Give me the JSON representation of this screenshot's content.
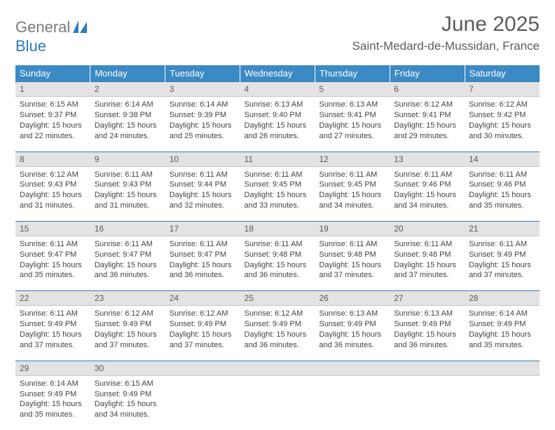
{
  "brand": {
    "word1": "General",
    "word2": "Blue"
  },
  "title": "June 2025",
  "location": "Saint-Medard-de-Mussidan, France",
  "colors": {
    "header_bg": "#3b8ac4",
    "header_text": "#ffffff",
    "daynum_bg": "#e3e3e3",
    "daynum_border_top": "#2f7ac0",
    "body_text": "#444444",
    "brand_gray": "#7a7a7a",
    "brand_blue": "#2f7ac0"
  },
  "typography": {
    "title_fontsize": 30,
    "location_fontsize": 17,
    "weekday_fontsize": 13,
    "daynum_fontsize": 12,
    "body_fontsize": 11
  },
  "weekdays": [
    "Sunday",
    "Monday",
    "Tuesday",
    "Wednesday",
    "Thursday",
    "Friday",
    "Saturday"
  ],
  "days": [
    {
      "n": "1",
      "sunrise": "Sunrise: 6:15 AM",
      "sunset": "Sunset: 9:37 PM",
      "day1": "Daylight: 15 hours",
      "day2": "and 22 minutes."
    },
    {
      "n": "2",
      "sunrise": "Sunrise: 6:14 AM",
      "sunset": "Sunset: 9:38 PM",
      "day1": "Daylight: 15 hours",
      "day2": "and 24 minutes."
    },
    {
      "n": "3",
      "sunrise": "Sunrise: 6:14 AM",
      "sunset": "Sunset: 9:39 PM",
      "day1": "Daylight: 15 hours",
      "day2": "and 25 minutes."
    },
    {
      "n": "4",
      "sunrise": "Sunrise: 6:13 AM",
      "sunset": "Sunset: 9:40 PM",
      "day1": "Daylight: 15 hours",
      "day2": "and 26 minutes."
    },
    {
      "n": "5",
      "sunrise": "Sunrise: 6:13 AM",
      "sunset": "Sunset: 9:41 PM",
      "day1": "Daylight: 15 hours",
      "day2": "and 27 minutes."
    },
    {
      "n": "6",
      "sunrise": "Sunrise: 6:12 AM",
      "sunset": "Sunset: 9:41 PM",
      "day1": "Daylight: 15 hours",
      "day2": "and 29 minutes."
    },
    {
      "n": "7",
      "sunrise": "Sunrise: 6:12 AM",
      "sunset": "Sunset: 9:42 PM",
      "day1": "Daylight: 15 hours",
      "day2": "and 30 minutes."
    },
    {
      "n": "8",
      "sunrise": "Sunrise: 6:12 AM",
      "sunset": "Sunset: 9:43 PM",
      "day1": "Daylight: 15 hours",
      "day2": "and 31 minutes."
    },
    {
      "n": "9",
      "sunrise": "Sunrise: 6:11 AM",
      "sunset": "Sunset: 9:43 PM",
      "day1": "Daylight: 15 hours",
      "day2": "and 31 minutes."
    },
    {
      "n": "10",
      "sunrise": "Sunrise: 6:11 AM",
      "sunset": "Sunset: 9:44 PM",
      "day1": "Daylight: 15 hours",
      "day2": "and 32 minutes."
    },
    {
      "n": "11",
      "sunrise": "Sunrise: 6:11 AM",
      "sunset": "Sunset: 9:45 PM",
      "day1": "Daylight: 15 hours",
      "day2": "and 33 minutes."
    },
    {
      "n": "12",
      "sunrise": "Sunrise: 6:11 AM",
      "sunset": "Sunset: 9:45 PM",
      "day1": "Daylight: 15 hours",
      "day2": "and 34 minutes."
    },
    {
      "n": "13",
      "sunrise": "Sunrise: 6:11 AM",
      "sunset": "Sunset: 9:46 PM",
      "day1": "Daylight: 15 hours",
      "day2": "and 34 minutes."
    },
    {
      "n": "14",
      "sunrise": "Sunrise: 6:11 AM",
      "sunset": "Sunset: 9:46 PM",
      "day1": "Daylight: 15 hours",
      "day2": "and 35 minutes."
    },
    {
      "n": "15",
      "sunrise": "Sunrise: 6:11 AM",
      "sunset": "Sunset: 9:47 PM",
      "day1": "Daylight: 15 hours",
      "day2": "and 35 minutes."
    },
    {
      "n": "16",
      "sunrise": "Sunrise: 6:11 AM",
      "sunset": "Sunset: 9:47 PM",
      "day1": "Daylight: 15 hours",
      "day2": "and 36 minutes."
    },
    {
      "n": "17",
      "sunrise": "Sunrise: 6:11 AM",
      "sunset": "Sunset: 9:47 PM",
      "day1": "Daylight: 15 hours",
      "day2": "and 36 minutes."
    },
    {
      "n": "18",
      "sunrise": "Sunrise: 6:11 AM",
      "sunset": "Sunset: 9:48 PM",
      "day1": "Daylight: 15 hours",
      "day2": "and 36 minutes."
    },
    {
      "n": "19",
      "sunrise": "Sunrise: 6:11 AM",
      "sunset": "Sunset: 9:48 PM",
      "day1": "Daylight: 15 hours",
      "day2": "and 37 minutes."
    },
    {
      "n": "20",
      "sunrise": "Sunrise: 6:11 AM",
      "sunset": "Sunset: 9:48 PM",
      "day1": "Daylight: 15 hours",
      "day2": "and 37 minutes."
    },
    {
      "n": "21",
      "sunrise": "Sunrise: 6:11 AM",
      "sunset": "Sunset: 9:49 PM",
      "day1": "Daylight: 15 hours",
      "day2": "and 37 minutes."
    },
    {
      "n": "22",
      "sunrise": "Sunrise: 6:11 AM",
      "sunset": "Sunset: 9:49 PM",
      "day1": "Daylight: 15 hours",
      "day2": "and 37 minutes."
    },
    {
      "n": "23",
      "sunrise": "Sunrise: 6:12 AM",
      "sunset": "Sunset: 9:49 PM",
      "day1": "Daylight: 15 hours",
      "day2": "and 37 minutes."
    },
    {
      "n": "24",
      "sunrise": "Sunrise: 6:12 AM",
      "sunset": "Sunset: 9:49 PM",
      "day1": "Daylight: 15 hours",
      "day2": "and 37 minutes."
    },
    {
      "n": "25",
      "sunrise": "Sunrise: 6:12 AM",
      "sunset": "Sunset: 9:49 PM",
      "day1": "Daylight: 15 hours",
      "day2": "and 36 minutes."
    },
    {
      "n": "26",
      "sunrise": "Sunrise: 6:13 AM",
      "sunset": "Sunset: 9:49 PM",
      "day1": "Daylight: 15 hours",
      "day2": "and 36 minutes."
    },
    {
      "n": "27",
      "sunrise": "Sunrise: 6:13 AM",
      "sunset": "Sunset: 9:49 PM",
      "day1": "Daylight: 15 hours",
      "day2": "and 36 minutes."
    },
    {
      "n": "28",
      "sunrise": "Sunrise: 6:14 AM",
      "sunset": "Sunset: 9:49 PM",
      "day1": "Daylight: 15 hours",
      "day2": "and 35 minutes."
    },
    {
      "n": "29",
      "sunrise": "Sunrise: 6:14 AM",
      "sunset": "Sunset: 9:49 PM",
      "day1": "Daylight: 15 hours",
      "day2": "and 35 minutes."
    },
    {
      "n": "30",
      "sunrise": "Sunrise: 6:15 AM",
      "sunset": "Sunset: 9:49 PM",
      "day1": "Daylight: 15 hours",
      "day2": "and 34 minutes."
    }
  ],
  "grid": {
    "weeks": 5,
    "cols": 7,
    "first_day_col": 0,
    "total_days": 30
  }
}
